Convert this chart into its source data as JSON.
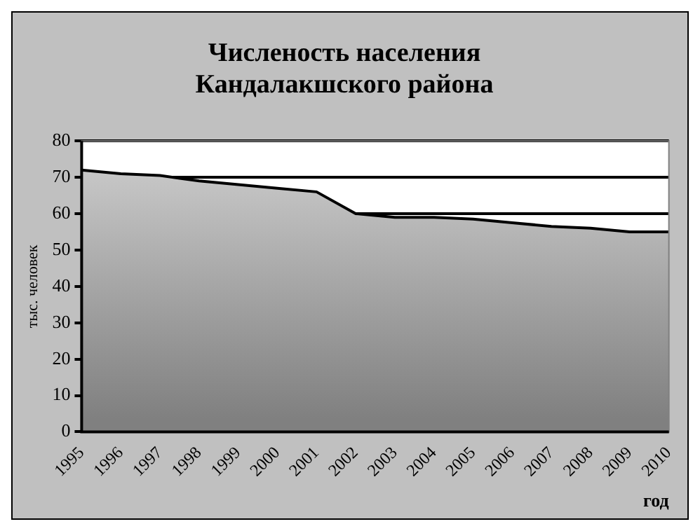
{
  "chart_data": {
    "type": "area",
    "title": "Численость населения Кандалакшского района",
    "xlabel": "год",
    "ylabel": "тыс. человек",
    "categories": [
      "1995",
      "1996",
      "1997",
      "1998",
      "1999",
      "2000",
      "2001",
      "2002",
      "2003",
      "2004",
      "2005",
      "2006",
      "2007",
      "2008",
      "2009",
      "2010"
    ],
    "series": [
      {
        "color": "#000000",
        "values": [
          72,
          71,
          70.5,
          69,
          68,
          67,
          66,
          60,
          59,
          59,
          58.5,
          57.5,
          56.5,
          56,
          55,
          55
        ]
      }
    ],
    "ylim": [
      0,
      80
    ],
    "yticks": [
      0,
      10,
      20,
      30,
      40,
      50,
      60,
      70,
      80
    ],
    "grid": "y",
    "legend": false
  }
}
